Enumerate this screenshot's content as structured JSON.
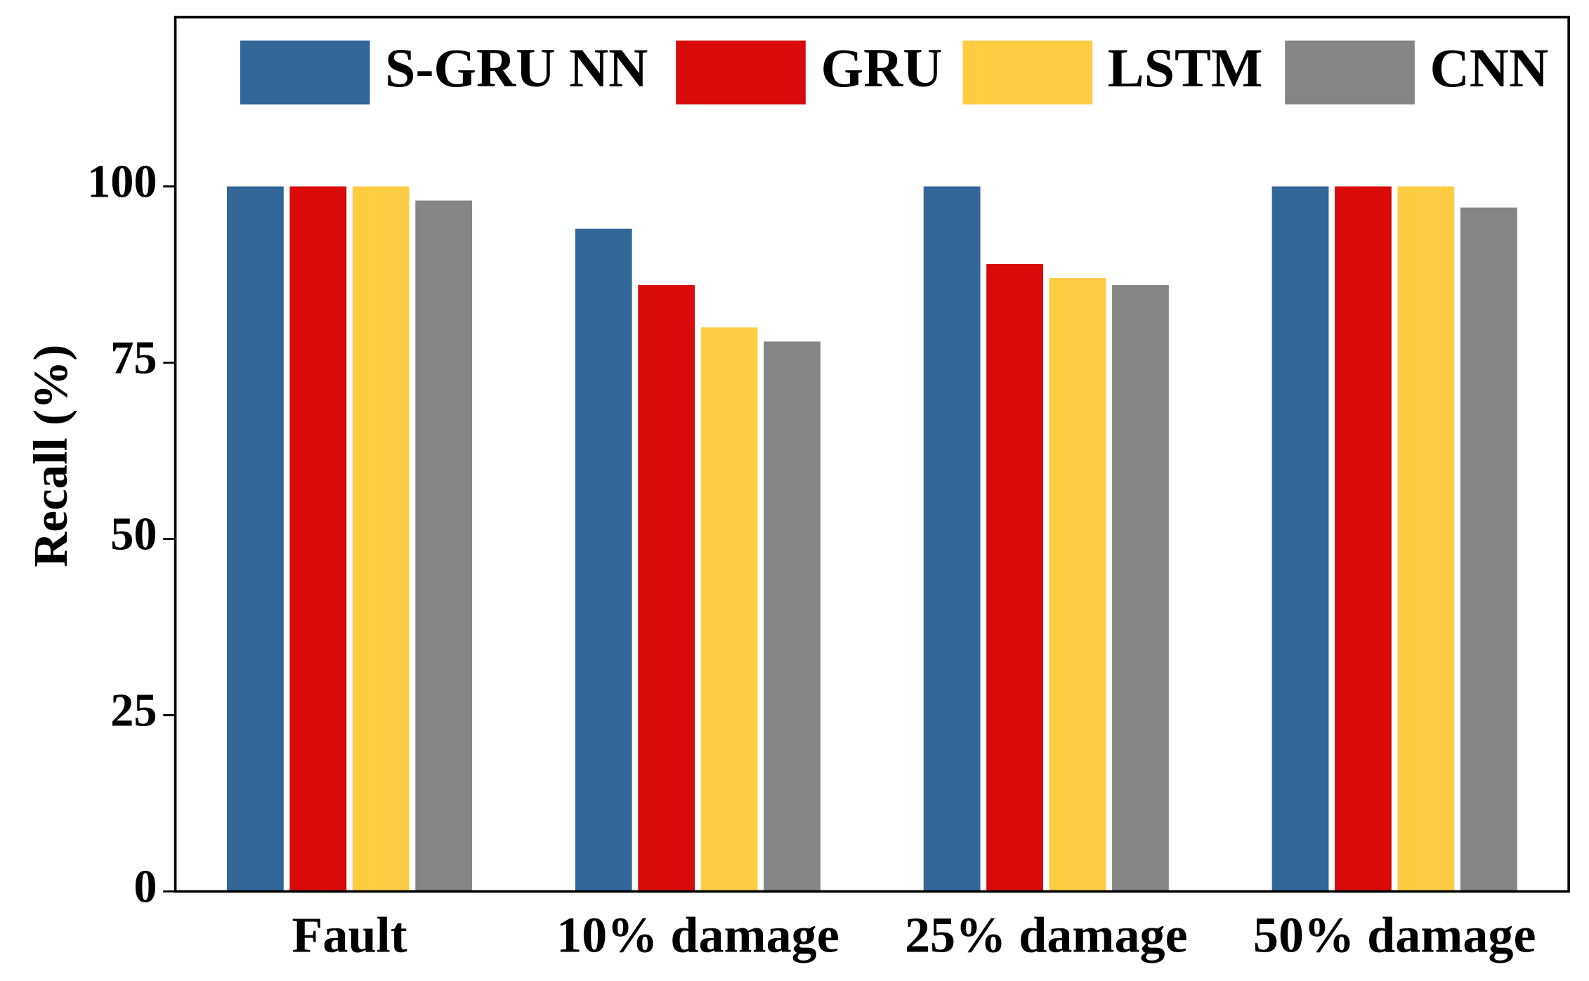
{
  "chart_data": {
    "type": "bar",
    "y_label": "Recall (%)",
    "categories": [
      "Fault",
      "10% damage",
      "25% damage",
      "50% damage"
    ],
    "series": [
      {
        "name": "S-GRU NN",
        "color": "#336699",
        "values": [
          100,
          94,
          100,
          100
        ]
      },
      {
        "name": "GRU",
        "color": "#d90a0a",
        "values": [
          100,
          86,
          89,
          100
        ]
      },
      {
        "name": "LSTM",
        "color": "#ffcc44",
        "values": [
          100,
          80,
          87,
          100
        ]
      },
      {
        "name": "CNN",
        "color": "#858585",
        "values": [
          98,
          78,
          86,
          97
        ]
      }
    ],
    "ylim": [
      0,
      124
    ],
    "yticks": [
      0,
      25,
      50,
      75,
      100
    ],
    "legend": "upper right"
  }
}
